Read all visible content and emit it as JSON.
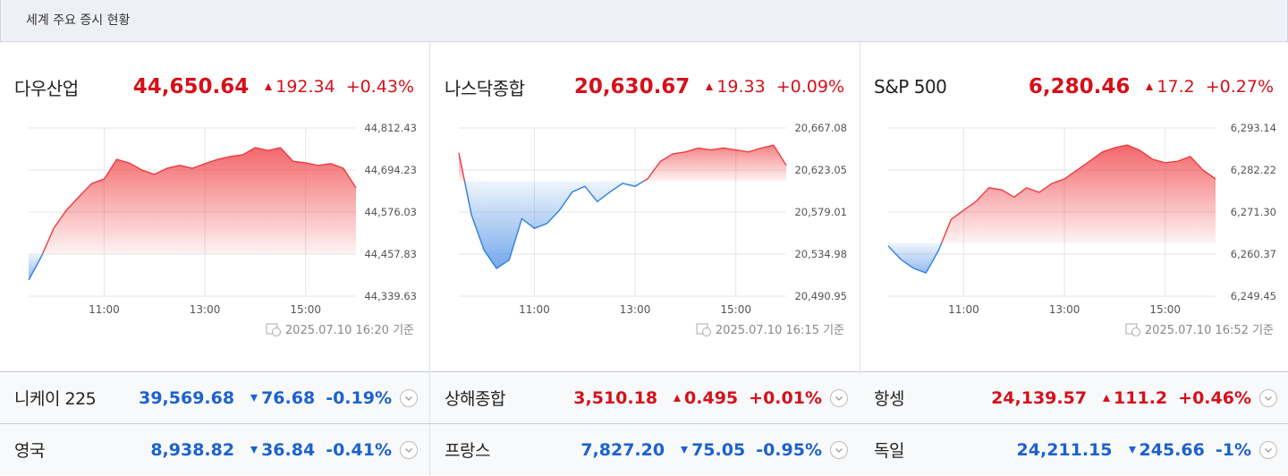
{
  "header": {
    "title": "세계 주요 증시 현황"
  },
  "colors": {
    "up": "#d6101a",
    "down": "#1c62cc",
    "up_line": "#ef3a3f",
    "down_line": "#2f7de1"
  },
  "panels": [
    {
      "name": "다우산업",
      "price": "44,650.64",
      "direction": "up",
      "change": "192.34",
      "change_pct": "+0.43%",
      "timestamp": "2025.07.10 16:20 기준",
      "chart": {
        "type": "area",
        "prev_close": 44458.3,
        "x": [
          570,
          585,
          600,
          615,
          630,
          645,
          660,
          675,
          690,
          705,
          720,
          735,
          750,
          765,
          780,
          795,
          810,
          825,
          840,
          855,
          870,
          885,
          900,
          915,
          930,
          945,
          960
        ],
        "values": [
          44385,
          44450,
          44531,
          44581,
          44619,
          44656,
          44669,
          44724,
          44714,
          44694,
          44682,
          44699,
          44707,
          44699,
          44712,
          44724,
          44732,
          44737,
          44757,
          44749,
          44757,
          44719,
          44714,
          44707,
          44712,
          44699,
          44644
        ],
        "xlim": [
          570,
          960
        ],
        "xticks": [
          {
            "value": 660,
            "label": "11:00"
          },
          {
            "value": 780,
            "label": "13:00"
          },
          {
            "value": 900,
            "label": "15:00"
          }
        ],
        "ylim": [
          44339.63,
          44812.43
        ],
        "yticks": [
          {
            "value": 44339.63,
            "label": "44,339.63"
          },
          {
            "value": 44457.83,
            "label": "44,457.83"
          },
          {
            "value": 44576.03,
            "label": "44,576.03"
          },
          {
            "value": 44694.23,
            "label": "44,694.23"
          },
          {
            "value": 44812.43,
            "label": "44,812.43"
          }
        ]
      }
    },
    {
      "name": "나스닥종합",
      "price": "20,630.67",
      "direction": "up",
      "change": "19.33",
      "change_pct": "+0.09%",
      "timestamp": "2025.07.10 16:15 기준",
      "chart": {
        "type": "area",
        "prev_close": 20611.34,
        "x": [
          570,
          585,
          600,
          615,
          630,
          645,
          660,
          675,
          690,
          705,
          720,
          735,
          750,
          765,
          780,
          795,
          810,
          825,
          840,
          855,
          870,
          885,
          900,
          915,
          930,
          945,
          960
        ],
        "values": [
          20641,
          20576,
          20539,
          20520,
          20529,
          20572,
          20562,
          20567,
          20581,
          20600,
          20606,
          20590,
          20600,
          20609,
          20606,
          20614,
          20632,
          20640,
          20642,
          20646,
          20644,
          20646,
          20644,
          20642,
          20646,
          20649,
          20628
        ],
        "xlim": [
          570,
          960
        ],
        "xticks": [
          {
            "value": 660,
            "label": "11:00"
          },
          {
            "value": 780,
            "label": "13:00"
          },
          {
            "value": 900,
            "label": "15:00"
          }
        ],
        "ylim": [
          20490.95,
          20667.08
        ],
        "yticks": [
          {
            "value": 20490.95,
            "label": "20,490.95"
          },
          {
            "value": 20534.98,
            "label": "20,534.98"
          },
          {
            "value": 20579.01,
            "label": "20,579.01"
          },
          {
            "value": 20623.05,
            "label": "20,623.05"
          },
          {
            "value": 20667.08,
            "label": "20,667.08"
          }
        ]
      }
    },
    {
      "name": "S&P 500",
      "price": "6,280.46",
      "direction": "up",
      "change": "17.2",
      "change_pct": "+0.27%",
      "timestamp": "2025.07.10 16:52 기준",
      "chart": {
        "type": "area",
        "prev_close": 6263.26,
        "x": [
          570,
          585,
          600,
          615,
          630,
          645,
          660,
          675,
          690,
          705,
          720,
          735,
          750,
          765,
          780,
          795,
          810,
          825,
          840,
          855,
          870,
          885,
          900,
          915,
          930,
          945,
          960
        ],
        "values": [
          6262.5,
          6259.0,
          6256.7,
          6255.5,
          6261.3,
          6269.4,
          6271.8,
          6274.1,
          6277.6,
          6277.1,
          6275.2,
          6277.6,
          6276.4,
          6278.7,
          6279.9,
          6282.2,
          6284.5,
          6286.9,
          6288.0,
          6288.7,
          6287.3,
          6285.0,
          6284.1,
          6284.5,
          6285.7,
          6282.2,
          6279.9
        ],
        "xlim": [
          570,
          960
        ],
        "xticks": [
          {
            "value": 660,
            "label": "11:00"
          },
          {
            "value": 780,
            "label": "13:00"
          },
          {
            "value": 900,
            "label": "15:00"
          }
        ],
        "ylim": [
          6249.45,
          6293.14
        ],
        "yticks": [
          {
            "value": 6249.45,
            "label": "6,249.45"
          },
          {
            "value": 6260.37,
            "label": "6,260.37"
          },
          {
            "value": 6271.3,
            "label": "6,271.30"
          },
          {
            "value": 6282.22,
            "label": "6,282.22"
          },
          {
            "value": 6293.14,
            "label": "6,293.14"
          }
        ]
      }
    }
  ],
  "rows": [
    {
      "name": "니케이 225",
      "price": "39,569.68",
      "direction": "down",
      "change": "76.68",
      "change_pct": "-0.19%"
    },
    {
      "name": "상해종합",
      "price": "3,510.18",
      "direction": "up",
      "change": "0.495",
      "change_pct": "+0.01%"
    },
    {
      "name": "항셍",
      "price": "24,139.57",
      "direction": "up",
      "change": "111.2",
      "change_pct": "+0.46%"
    },
    {
      "name": "영국",
      "price": "8,938.82",
      "direction": "down",
      "change": "36.84",
      "change_pct": "-0.41%"
    },
    {
      "name": "프랑스",
      "price": "7,827.20",
      "direction": "down",
      "change": "75.05",
      "change_pct": "-0.95%"
    },
    {
      "name": "독일",
      "price": "24,211.15",
      "direction": "down",
      "change": "245.66",
      "change_pct": "-1%"
    }
  ]
}
